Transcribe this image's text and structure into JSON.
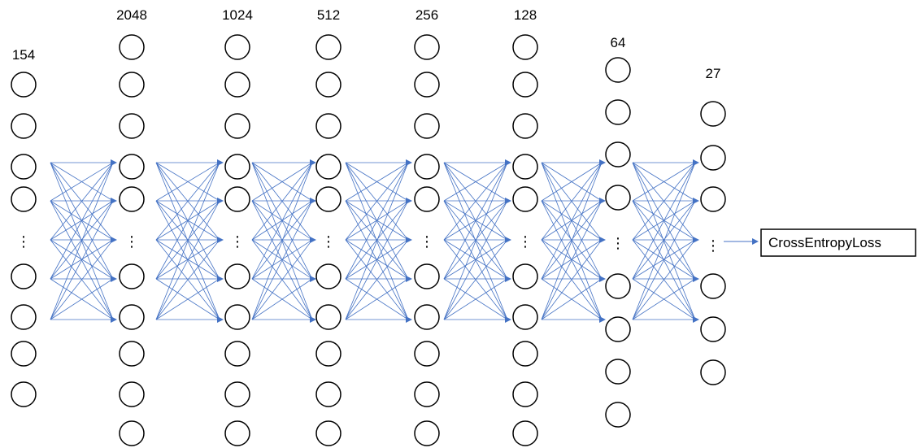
{
  "layers": [
    {
      "label": "154"
    },
    {
      "label": "2048"
    },
    {
      "label": "1024"
    },
    {
      "label": "512"
    },
    {
      "label": "256"
    },
    {
      "label": "128"
    },
    {
      "label": "64"
    },
    {
      "label": "27"
    }
  ],
  "ellipsis": "⋮",
  "loss": {
    "label": "CrossEntropyLoss"
  },
  "colors": {
    "connection": "#4472c4",
    "node_stroke": "#000000",
    "text": "#000000"
  }
}
